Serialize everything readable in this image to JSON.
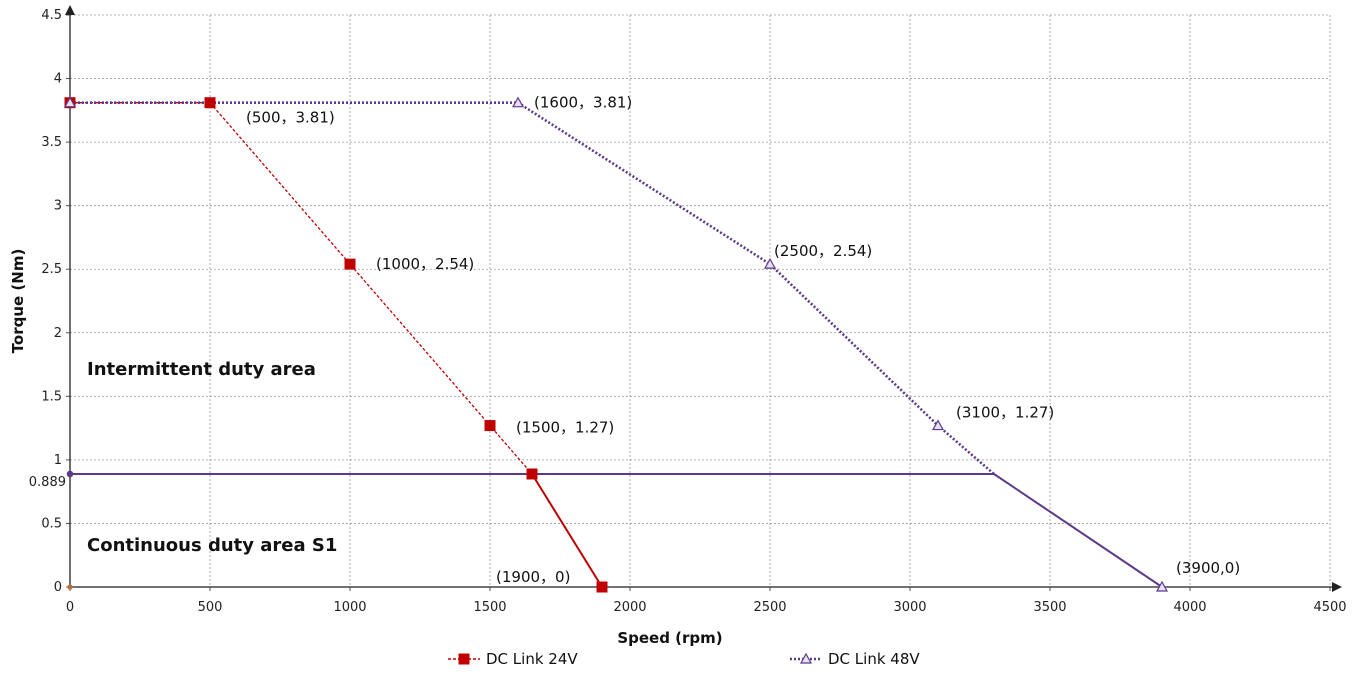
{
  "chart_data": {
    "type": "line",
    "title": "",
    "xlabel": "Speed (rpm)",
    "ylabel": "Torque (Nm)",
    "xlim": [
      0,
      4500
    ],
    "ylim": [
      0,
      4.5
    ],
    "xticks": [
      "0",
      "500",
      "1000",
      "1500",
      "2000",
      "2500",
      "3000",
      "3500",
      "4000",
      "4500"
    ],
    "yticks": [
      "0",
      "0.5",
      "1",
      "1.5",
      "2",
      "2.5",
      "3",
      "3.5",
      "4",
      "4.5"
    ],
    "extra_ytick": "0.889",
    "grid": true,
    "legend_position": "bottom",
    "series": [
      {
        "name": "DC Link 24V",
        "color": "#c00000",
        "marker": "square",
        "marked_points": [
          [
            0,
            3.81
          ],
          [
            500,
            3.81
          ],
          [
            1000,
            2.54
          ],
          [
            1500,
            1.27
          ],
          [
            1650,
            0.889
          ],
          [
            1900,
            0
          ]
        ],
        "intermittent_curve": [
          [
            0,
            3.81
          ],
          [
            500,
            3.81
          ],
          [
            1000,
            2.54
          ],
          [
            1500,
            1.27
          ],
          [
            1650,
            0.889
          ]
        ],
        "continuous_curve": [
          [
            0,
            0.889
          ],
          [
            1650,
            0.889
          ],
          [
            1900,
            0
          ]
        ]
      },
      {
        "name": "DC Link 48V",
        "color": "#5b3a8c",
        "marker": "triangle",
        "marked_points": [
          [
            0,
            3.81
          ],
          [
            1600,
            3.81
          ],
          [
            2500,
            2.54
          ],
          [
            3100,
            1.27
          ],
          [
            3900,
            0
          ]
        ],
        "intermittent_curve": [
          [
            0,
            3.81
          ],
          [
            1600,
            3.81
          ],
          [
            2500,
            2.54
          ],
          [
            3100,
            1.27
          ],
          [
            3300,
            0.889
          ]
        ],
        "continuous_curve": [
          [
            0,
            0.889
          ],
          [
            3300,
            0.889
          ],
          [
            3900,
            0
          ]
        ]
      }
    ],
    "annotations": [
      {
        "text": "(500，3.81)",
        "x": 500,
        "y": 3.81
      },
      {
        "text": "(1000，2.54)",
        "x": 1000,
        "y": 2.54
      },
      {
        "text": "(1500，1.27)",
        "x": 1500,
        "y": 1.27
      },
      {
        "text": "(1900，0)",
        "x": 1900,
        "y": 0
      },
      {
        "text": "(1600，3.81)",
        "x": 1600,
        "y": 3.81
      },
      {
        "text": "(2500，2.54)",
        "x": 2500,
        "y": 2.54
      },
      {
        "text": "(3100，1.27)",
        "x": 3100,
        "y": 1.27
      },
      {
        "text": "(3900,0)",
        "x": 3900,
        "y": 0
      }
    ],
    "regions": [
      {
        "text": "Intermittent duty area"
      },
      {
        "text": "Continuous duty area S1"
      }
    ]
  }
}
